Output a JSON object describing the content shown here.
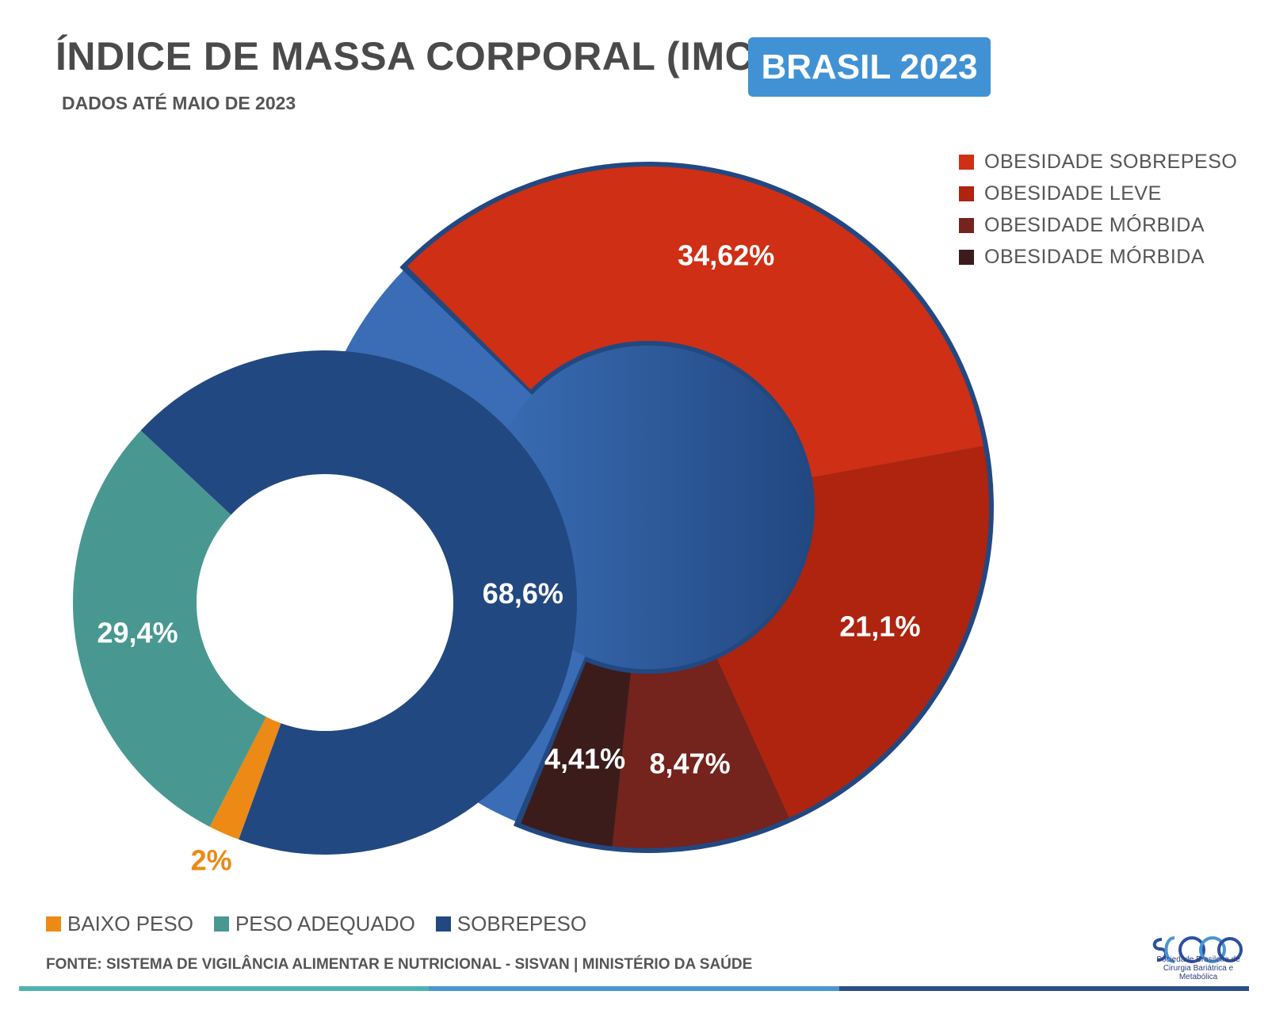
{
  "header": {
    "title": "ÍNDICE DE MASSA CORPORAL (IMC)",
    "badge": "BRASIL 2023",
    "subtitle": "DADOS ATÉ MAIO DE 2023"
  },
  "colors": {
    "baixo_peso": "#ec8a15",
    "peso_adequado": "#489891",
    "sobrepeso": "#224881",
    "sobrepeso_light": "#3a6db5",
    "obesidade_sobrepeso": "#cf2f14",
    "obesidade_leve": "#ae240f",
    "obesidade_morbida_1": "#74231d",
    "obesidade_morbida_2": "#3b1c1b",
    "badge": "#4192d4",
    "text": "#4a4a4a"
  },
  "chart_data": [
    {
      "type": "pie",
      "subtype": "donut",
      "categories": [
        "BAIXO PESO",
        "PESO ADEQUADO",
        "SOBREPESO"
      ],
      "values": [
        2,
        29.4,
        68.6
      ],
      "labels": [
        "2%",
        "29,4%",
        "68,6%"
      ],
      "legend_position": "bottom"
    },
    {
      "type": "pie",
      "subtype": "donut",
      "categories": [
        "OBESIDADE SOBREPESO",
        "OBESIDADE LEVE",
        "OBESIDADE MÓRBIDA",
        "OBESIDADE MÓRBIDA"
      ],
      "values": [
        34.62,
        21.1,
        8.47,
        4.41
      ],
      "labels": [
        "34,62%",
        "21,1%",
        "8,47%",
        "4,41%"
      ],
      "legend_position": "top-right"
    }
  ],
  "source": "FONTE: SISTEMA DE VIGILÂNCIA ALIMENTAR E NUTRICIONAL - SISVAN | MINISTÉRIO DA SAÚDE",
  "logo": {
    "text_line1": "Sociedade Brasileira de",
    "text_line2": "Cirurgia Bariátrica e Metabólica"
  },
  "footer_bar_colors": [
    "#4fb3b0",
    "#4a95d2",
    "#2a4f87"
  ]
}
